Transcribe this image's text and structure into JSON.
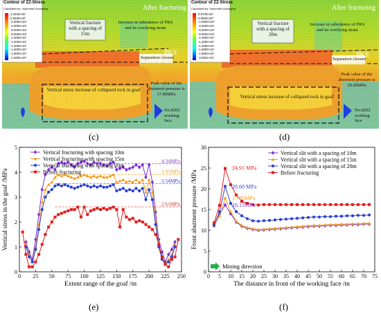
{
  "panels": [
    {
      "caption": "(c)",
      "legend_title": "Contour of ZZ-Stress",
      "legend_subtitle": "Calculated by: Volumetric Averaging",
      "legend_values": [
        "1.1526×10⁶",
        "0.0000×10⁰",
        "-2.0000×10⁶",
        "-4.0000×10⁶",
        "-6.0000×10⁶",
        "-8.0000×10⁶",
        "-1.0000×10⁷",
        "-1.2000×10⁷",
        "-1.4000×10⁷",
        "-1.6000×10⁷",
        "-1.8000×10⁷",
        "-1.8304×10⁷"
      ],
      "after_fracturing": "After fracturing",
      "fracture_note": "Vertical fracture with a spacing of 15m",
      "pks_note": "Increase in subsidence of PKS and its overlying strata",
      "pks": "PKS",
      "separation": "Separation closure",
      "goaf_note": "Vertical stress increase of collapsed rock in goaf",
      "peak_note": "Peak value of the abutment pressure is 17.80MPa",
      "face_note": "No.8202 working face"
    },
    {
      "caption": "(d)",
      "legend_title": "Contour of ZZ-Stress",
      "legend_subtitle": "Calculated by: Volumetric Averaging",
      "legend_values": [
        "6.6706×10⁵",
        "0.0000×10⁰",
        "-2.0000×10⁶",
        "-4.0000×10⁶",
        "-6.0000×10⁶",
        "-8.0000×10⁶",
        "-1.0000×10⁷",
        "-1.2000×10⁷",
        "-1.4000×10⁷",
        "-1.6000×10⁷",
        "-1.8000×10⁷",
        "-2.0601×10⁷"
      ],
      "after_fracturing": "After fracturing",
      "fracture_note": "Vertical fracture with a spacing of 20m",
      "pks_note": "Increase in subsidence of PKS and its overlying strata",
      "pks": "PKS",
      "separation": "Separation closure",
      "goaf_note": "Vertical stress increase of collapsed rock in goaf",
      "peak_note": "Peak value of the abutment pressure is 20.60MPa",
      "face_note": "No.8202 working face"
    }
  ],
  "colors": {
    "spacing10": "#7b2fd6",
    "spacing15": "#f29a1c",
    "spacing20": "#2a3fd0",
    "before": "#e01e1e",
    "arrow": "#22b04a"
  },
  "chart_data": [
    {
      "type": "line",
      "caption": "(e)",
      "xlabel": "Extent range of the goaf /m",
      "ylabel": "Vertical stress in the goaf /MPa",
      "xlim": [
        0,
        250
      ],
      "ylim": [
        0,
        5
      ],
      "xticks": [
        0,
        25,
        50,
        75,
        100,
        125,
        150,
        175,
        200,
        225,
        250
      ],
      "yticks": [
        0,
        1,
        2,
        3,
        4,
        5
      ],
      "legend_position": "top-left",
      "reference_lines": [
        {
          "y": 4.34,
          "label": "4.34MPa",
          "color": "#7b2fd6"
        },
        {
          "y": 3.91,
          "label": "3.91MPa",
          "color": "#f29a1c"
        },
        {
          "y": 3.54,
          "label": "3.54MPa",
          "color": "#2a3fd0"
        },
        {
          "y": 2.61,
          "label": "2.61MPa",
          "color": "#e01e1e"
        }
      ],
      "series": [
        {
          "name": "Vertical fracturing with spacing 10m",
          "color": "#7b2fd6",
          "marker": "diamond",
          "x": [
            10,
            15,
            20,
            25,
            30,
            35,
            40,
            45,
            50,
            55,
            60,
            65,
            70,
            75,
            80,
            85,
            90,
            95,
            100,
            105,
            110,
            115,
            120,
            125,
            130,
            135,
            140,
            145,
            150,
            155,
            160,
            165,
            170,
            175,
            180,
            185,
            190,
            195,
            200,
            205,
            210,
            215,
            220,
            225,
            230,
            235,
            240
          ],
          "y": [
            1.2,
            0.8,
            0.5,
            1.3,
            2.3,
            3.3,
            3.9,
            4.1,
            4.2,
            4.1,
            4.35,
            4.4,
            4.35,
            4.4,
            4.3,
            4.2,
            4.35,
            4.4,
            4.45,
            4.35,
            4.3,
            4.4,
            4.35,
            4.35,
            4.3,
            4.25,
            4.35,
            4.4,
            4.1,
            4.15,
            4.2,
            4.1,
            4.15,
            4.2,
            4.3,
            4.2,
            4.3,
            3.8,
            4.3,
            3.6,
            2.4,
            1.3,
            0.8,
            0.4,
            0.7,
            0.9,
            1.2
          ]
        },
        {
          "name": "Vertical fracturing with spacing 15m",
          "color": "#f29a1c",
          "marker": "triangle",
          "x": [
            10,
            15,
            20,
            25,
            30,
            35,
            40,
            45,
            50,
            55,
            60,
            65,
            70,
            75,
            80,
            85,
            90,
            95,
            100,
            105,
            110,
            115,
            120,
            125,
            130,
            135,
            140,
            145,
            150,
            155,
            160,
            165,
            170,
            175,
            180,
            185,
            190,
            195,
            200,
            205,
            210,
            215,
            220,
            225,
            230,
            235,
            240
          ],
          "y": [
            1.1,
            0.7,
            0.4,
            1.0,
            1.9,
            2.8,
            3.3,
            3.5,
            3.6,
            3.8,
            3.9,
            3.85,
            3.9,
            3.85,
            3.8,
            3.75,
            3.8,
            3.85,
            3.9,
            3.85,
            3.8,
            3.85,
            3.8,
            3.85,
            3.8,
            3.8,
            3.85,
            3.9,
            3.6,
            3.65,
            3.7,
            3.6,
            3.65,
            3.6,
            3.7,
            3.6,
            3.7,
            3.2,
            3.7,
            3.2,
            2.1,
            1.1,
            0.6,
            0.3,
            0.5,
            0.7,
            1.1
          ]
        },
        {
          "name": "Vertical fracturing with spacing 20m",
          "color": "#2a3fd0",
          "marker": "circle",
          "x": [
            10,
            15,
            20,
            25,
            30,
            35,
            40,
            45,
            50,
            55,
            60,
            65,
            70,
            75,
            80,
            85,
            90,
            95,
            100,
            105,
            110,
            115,
            120,
            125,
            130,
            135,
            140,
            145,
            150,
            155,
            160,
            165,
            170,
            175,
            180,
            185,
            190,
            195,
            200,
            205,
            210,
            215,
            220,
            225,
            230,
            235,
            240
          ],
          "y": [
            1.0,
            0.6,
            0.4,
            0.9,
            1.7,
            2.5,
            3.0,
            3.2,
            3.3,
            3.45,
            3.5,
            3.45,
            3.5,
            3.45,
            3.4,
            3.35,
            3.4,
            3.45,
            3.5,
            3.45,
            3.4,
            3.45,
            3.4,
            3.45,
            3.4,
            3.4,
            3.45,
            3.5,
            3.25,
            3.3,
            3.35,
            3.25,
            3.3,
            3.25,
            3.35,
            3.25,
            3.35,
            2.9,
            3.3,
            2.9,
            1.9,
            1.0,
            0.5,
            0.3,
            0.4,
            0.6,
            1.0
          ]
        },
        {
          "name": "Before fracturing",
          "color": "#e01e1e",
          "marker": "square",
          "x": [
            5,
            10,
            15,
            20,
            25,
            30,
            35,
            40,
            45,
            50,
            55,
            60,
            65,
            70,
            75,
            80,
            85,
            90,
            95,
            100,
            105,
            110,
            115,
            120,
            125,
            130,
            135,
            140,
            145,
            150,
            155,
            160,
            165,
            170,
            175,
            180,
            185,
            190,
            195,
            200,
            205,
            210,
            215,
            220,
            225,
            230,
            235,
            240,
            245
          ],
          "y": [
            1.6,
            0.7,
            0.2,
            0.2,
            0.4,
            0.7,
            1.1,
            1.5,
            1.8,
            2.0,
            2.2,
            2.3,
            2.35,
            2.4,
            2.45,
            2.5,
            2.5,
            2.6,
            2.2,
            2.6,
            2.3,
            2.45,
            2.5,
            2.55,
            2.5,
            2.55,
            2.5,
            2.55,
            2.6,
            2.5,
            1.8,
            2.5,
            2.2,
            2.1,
            2.15,
            2.0,
            2.05,
            2.0,
            1.9,
            1.8,
            1.7,
            1.5,
            1.1,
            0.6,
            0.3,
            0.2,
            0.5,
            0.6,
            1.3
          ]
        }
      ]
    },
    {
      "type": "line",
      "caption": "(f)",
      "xlabel": "The distance in front of the working face /m",
      "ylabel": "Front abutment pressure /MPa",
      "xlim": [
        0,
        75
      ],
      "ylim": [
        0,
        30
      ],
      "xticks": [
        0,
        5,
        10,
        15,
        20,
        25,
        30,
        35,
        40,
        45,
        50,
        55,
        60,
        65,
        70,
        75
      ],
      "yticks": [
        0,
        5,
        10,
        15,
        20,
        25,
        30
      ],
      "legend_position": "top-right",
      "arrow_label": "Mining direction",
      "peak_labels": [
        {
          "label": "24.91 MPa",
          "color": "#e01e1e",
          "x": 7.5,
          "y": 24.91
        },
        {
          "label": "20.60 MPa",
          "color": "#2a3fd0",
          "x": 7.5,
          "y": 20.6
        },
        {
          "label": "17.80MPa",
          "color": "#f29a1c",
          "x": 7.5,
          "y": 17.8
        },
        {
          "label": "16.13MPa",
          "color": "#7b2fd6",
          "x": 7.5,
          "y": 16.13
        }
      ],
      "series": [
        {
          "name": "Vertical slit with a spacing of 10m",
          "color": "#7b2fd6",
          "marker": "diamond",
          "x": [
            2.5,
            5,
            7.5,
            10,
            12.5,
            15,
            17.5,
            20,
            22.5,
            25,
            27.5,
            30,
            32.5,
            35,
            37.5,
            40,
            42.5,
            45,
            47.5,
            50,
            52.5,
            55,
            57.5,
            60,
            62.5,
            65,
            67.5,
            70,
            72.5
          ],
          "y": [
            11.5,
            14.0,
            16.1,
            14.0,
            12.0,
            11.0,
            10.5,
            10.2,
            10.0,
            10.1,
            10.2,
            10.3,
            10.4,
            10.5,
            10.6,
            10.7,
            10.8,
            10.9,
            11.0,
            11.0,
            11.1,
            11.2,
            11.2,
            11.3,
            11.3,
            11.4,
            11.4,
            11.5,
            11.5
          ]
        },
        {
          "name": "Vertical slit with a spacing of 15m",
          "color": "#f29a1c",
          "marker": "triangle",
          "x": [
            2.5,
            5,
            7.5,
            10,
            12.5,
            15,
            17.5,
            20,
            22.5,
            25,
            27.5,
            30,
            32.5,
            35,
            37.5,
            40,
            42.5,
            45,
            47.5,
            50,
            52.5,
            55,
            57.5,
            60,
            62.5,
            65,
            67.5,
            70,
            72.5
          ],
          "y": [
            11.0,
            13.5,
            17.8,
            14.5,
            12.2,
            11.2,
            10.7,
            10.4,
            10.2,
            10.3,
            10.4,
            10.5,
            10.6,
            10.7,
            10.8,
            10.9,
            11.0,
            11.1,
            11.2,
            11.2,
            11.3,
            11.4,
            11.4,
            11.5,
            11.5,
            11.6,
            11.6,
            11.7,
            11.7
          ]
        },
        {
          "name": "Vertical slit with a spacing of 20m",
          "color": "#2a3fd0",
          "marker": "circle",
          "x": [
            2.5,
            5,
            7.5,
            10,
            12.5,
            15,
            17.5,
            20,
            22.5,
            25,
            27.5,
            30,
            32.5,
            35,
            37.5,
            40,
            42.5,
            45,
            47.5,
            50,
            52.5,
            55,
            57.5,
            60,
            62.5,
            65,
            67.5,
            70,
            72.5
          ],
          "y": [
            11.2,
            14.5,
            20.6,
            16.5,
            14.5,
            13.5,
            12.8,
            12.3,
            12.2,
            12.3,
            12.4,
            12.5,
            12.6,
            12.7,
            12.8,
            12.9,
            13.0,
            13.1,
            13.2,
            13.2,
            13.3,
            13.3,
            13.4,
            13.4,
            13.5,
            13.5,
            13.6,
            13.6,
            13.7
          ]
        },
        {
          "name": "Before fracturing",
          "color": "#e01e1e",
          "marker": "square",
          "x": [
            2.5,
            5,
            7.5,
            10,
            12.5,
            15,
            17.5,
            20,
            22.5,
            25,
            27.5,
            30,
            32.5,
            35,
            37.5,
            40,
            42.5,
            45,
            47.5,
            50,
            52.5,
            55,
            57.5,
            60,
            62.5,
            65,
            67.5,
            70,
            72.5
          ],
          "y": [
            11.8,
            16.0,
            24.91,
            21.0,
            18.5,
            17.0,
            16.5,
            16.2,
            16.1,
            16.2,
            16.2,
            16.2,
            16.2,
            16.2,
            16.2,
            16.2,
            16.2,
            16.2,
            16.2,
            16.2,
            16.2,
            16.2,
            16.2,
            16.2,
            16.2,
            16.2,
            16.2,
            16.2,
            16.2
          ]
        }
      ]
    }
  ]
}
